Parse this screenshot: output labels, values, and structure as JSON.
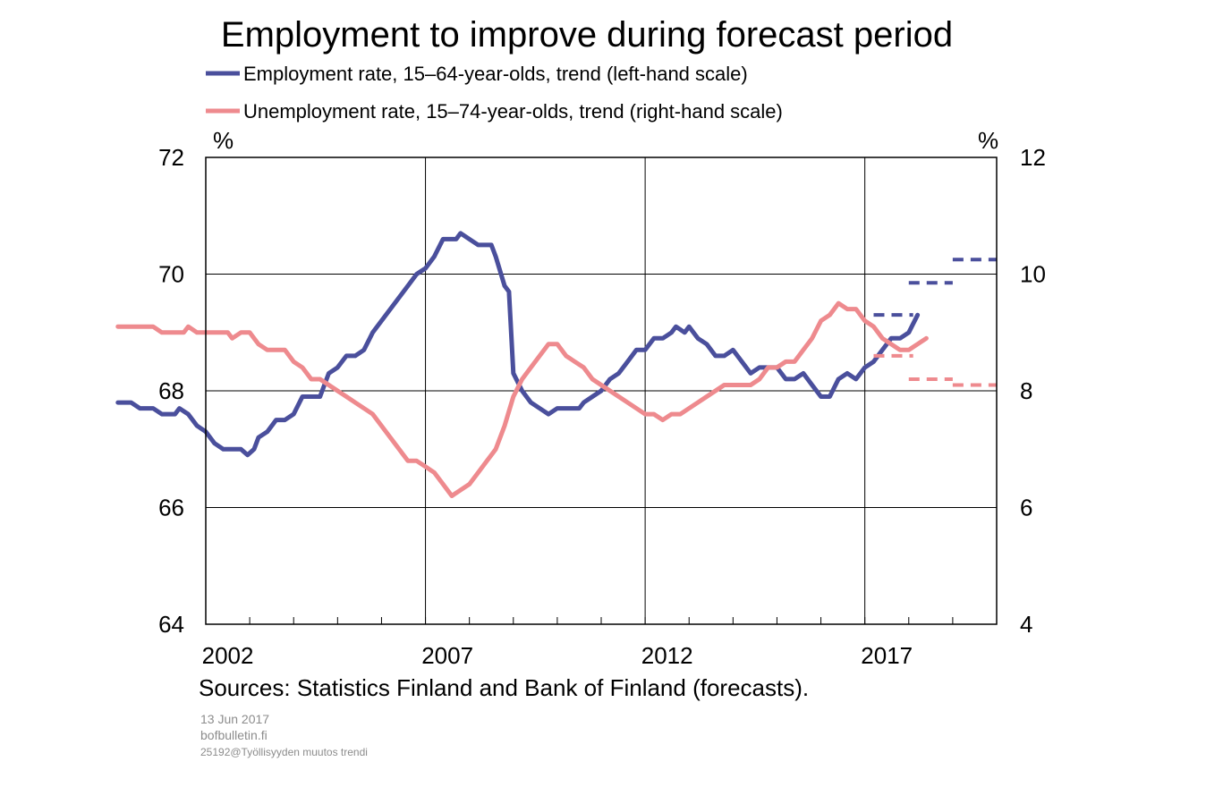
{
  "chart_data": {
    "type": "line",
    "title": "Employment to improve during forecast period",
    "left_unit": "%",
    "right_unit": "%",
    "x_tick_labels": [
      "2002",
      "2007",
      "2012",
      "2017"
    ],
    "x_range": [
      2001.0,
      2019.0
    ],
    "left_ylim": [
      64,
      72
    ],
    "right_ylim": [
      4,
      12
    ],
    "left_ticks": [
      "72",
      "70",
      "68",
      "66",
      "64"
    ],
    "right_ticks": [
      "12",
      "10",
      "8",
      "6",
      "4"
    ],
    "grid": true,
    "legend_position": "top",
    "series": [
      {
        "name": "Employment rate, 15–64-year-olds, trend (left-hand scale)",
        "axis": "left",
        "color": "#4a4f9c",
        "points": [
          [
            2001.0,
            67.8
          ],
          [
            2001.3,
            67.8
          ],
          [
            2001.5,
            67.7
          ],
          [
            2001.8,
            67.7
          ],
          [
            2002.0,
            67.6
          ],
          [
            2002.3,
            67.6
          ],
          [
            2002.4,
            67.7
          ],
          [
            2002.6,
            67.6
          ],
          [
            2002.8,
            67.4
          ],
          [
            2003.0,
            67.3
          ],
          [
            2003.2,
            67.1
          ],
          [
            2003.4,
            67.0
          ],
          [
            2003.6,
            67.0
          ],
          [
            2003.8,
            67.0
          ],
          [
            2003.95,
            66.9
          ],
          [
            2004.1,
            67.0
          ],
          [
            2004.2,
            67.2
          ],
          [
            2004.4,
            67.3
          ],
          [
            2004.6,
            67.5
          ],
          [
            2004.8,
            67.5
          ],
          [
            2005.0,
            67.6
          ],
          [
            2005.2,
            67.9
          ],
          [
            2005.4,
            67.9
          ],
          [
            2005.6,
            67.9
          ],
          [
            2005.8,
            68.3
          ],
          [
            2006.0,
            68.4
          ],
          [
            2006.2,
            68.6
          ],
          [
            2006.4,
            68.6
          ],
          [
            2006.6,
            68.7
          ],
          [
            2006.8,
            69.0
          ],
          [
            2007.0,
            69.2
          ],
          [
            2007.2,
            69.4
          ],
          [
            2007.4,
            69.6
          ],
          [
            2007.6,
            69.8
          ],
          [
            2007.8,
            70.0
          ],
          [
            2008.0,
            70.1
          ],
          [
            2008.2,
            70.3
          ],
          [
            2008.4,
            70.6
          ],
          [
            2008.7,
            70.6
          ],
          [
            2008.8,
            70.7
          ],
          [
            2009.0,
            70.6
          ],
          [
            2009.2,
            70.5
          ],
          [
            2009.5,
            70.5
          ],
          [
            2009.6,
            70.3
          ],
          [
            2009.8,
            69.8
          ],
          [
            2009.9,
            69.7
          ],
          [
            2010.0,
            68.3
          ],
          [
            2010.2,
            68.0
          ],
          [
            2010.4,
            67.8
          ],
          [
            2010.6,
            67.7
          ],
          [
            2010.8,
            67.6
          ],
          [
            2011.0,
            67.7
          ],
          [
            2011.2,
            67.7
          ],
          [
            2011.5,
            67.7
          ],
          [
            2011.6,
            67.8
          ],
          [
            2011.8,
            67.9
          ],
          [
            2012.0,
            68.0
          ],
          [
            2012.2,
            68.2
          ],
          [
            2012.4,
            68.3
          ],
          [
            2012.6,
            68.5
          ],
          [
            2012.8,
            68.7
          ],
          [
            2013.0,
            68.7
          ],
          [
            2013.2,
            68.9
          ],
          [
            2013.4,
            68.9
          ],
          [
            2013.6,
            69.0
          ],
          [
            2013.7,
            69.1
          ],
          [
            2013.9,
            69.0
          ],
          [
            2014.0,
            69.1
          ],
          [
            2014.2,
            68.9
          ],
          [
            2014.4,
            68.8
          ],
          [
            2014.6,
            68.6
          ],
          [
            2014.8,
            68.6
          ],
          [
            2015.0,
            68.7
          ],
          [
            2015.2,
            68.5
          ],
          [
            2015.4,
            68.3
          ],
          [
            2015.6,
            68.4
          ],
          [
            2015.8,
            68.4
          ],
          [
            2016.0,
            68.4
          ],
          [
            2016.2,
            68.2
          ],
          [
            2016.4,
            68.2
          ],
          [
            2016.6,
            68.3
          ],
          [
            2016.8,
            68.1
          ],
          [
            2017.0,
            67.9
          ],
          [
            2017.2,
            67.9
          ],
          [
            2017.4,
            68.2
          ],
          [
            2017.6,
            68.3
          ],
          [
            2017.8,
            68.2
          ],
          [
            2018.0,
            68.4
          ],
          [
            2018.2,
            68.5
          ],
          [
            2018.4,
            68.7
          ],
          [
            2018.6,
            68.9
          ],
          [
            2018.8,
            68.9
          ],
          [
            2019.0,
            69.0
          ],
          [
            2019.2,
            69.3
          ]
        ],
        "forecast_segments": [
          [
            69.3
          ],
          [
            69.85
          ],
          [
            70.25
          ]
        ]
      },
      {
        "name": "Unemployment rate, 15–74-year-olds, trend (right-hand scale)",
        "axis": "right",
        "color": "#ee8a8e",
        "points": [
          [
            2001.0,
            9.1
          ],
          [
            2001.8,
            9.1
          ],
          [
            2002.0,
            9.0
          ],
          [
            2002.5,
            9.0
          ],
          [
            2002.6,
            9.1
          ],
          [
            2002.8,
            9.0
          ],
          [
            2003.2,
            9.0
          ],
          [
            2003.5,
            9.0
          ],
          [
            2003.6,
            8.9
          ],
          [
            2003.8,
            9.0
          ],
          [
            2004.0,
            9.0
          ],
          [
            2004.2,
            8.8
          ],
          [
            2004.4,
            8.7
          ],
          [
            2004.6,
            8.7
          ],
          [
            2004.8,
            8.7
          ],
          [
            2005.0,
            8.5
          ],
          [
            2005.2,
            8.4
          ],
          [
            2005.4,
            8.2
          ],
          [
            2005.6,
            8.2
          ],
          [
            2005.8,
            8.1
          ],
          [
            2006.0,
            8.0
          ],
          [
            2006.2,
            7.9
          ],
          [
            2006.4,
            7.8
          ],
          [
            2006.6,
            7.7
          ],
          [
            2006.8,
            7.6
          ],
          [
            2007.0,
            7.4
          ],
          [
            2007.2,
            7.2
          ],
          [
            2007.4,
            7.0
          ],
          [
            2007.6,
            6.8
          ],
          [
            2007.8,
            6.8
          ],
          [
            2008.0,
            6.7
          ],
          [
            2008.2,
            6.6
          ],
          [
            2008.4,
            6.4
          ],
          [
            2008.6,
            6.2
          ],
          [
            2008.8,
            6.3
          ],
          [
            2009.0,
            6.4
          ],
          [
            2009.2,
            6.6
          ],
          [
            2009.4,
            6.8
          ],
          [
            2009.6,
            7.0
          ],
          [
            2009.8,
            7.4
          ],
          [
            2010.0,
            7.9
          ],
          [
            2010.2,
            8.2
          ],
          [
            2010.4,
            8.4
          ],
          [
            2010.6,
            8.6
          ],
          [
            2010.8,
            8.8
          ],
          [
            2011.0,
            8.8
          ],
          [
            2011.2,
            8.6
          ],
          [
            2011.4,
            8.5
          ],
          [
            2011.6,
            8.4
          ],
          [
            2011.8,
            8.2
          ],
          [
            2012.0,
            8.1
          ],
          [
            2012.2,
            8.0
          ],
          [
            2012.4,
            7.9
          ],
          [
            2012.6,
            7.8
          ],
          [
            2012.8,
            7.7
          ],
          [
            2013.0,
            7.6
          ],
          [
            2013.2,
            7.6
          ],
          [
            2013.4,
            7.5
          ],
          [
            2013.6,
            7.6
          ],
          [
            2013.8,
            7.6
          ],
          [
            2014.0,
            7.7
          ],
          [
            2014.2,
            7.8
          ],
          [
            2014.4,
            7.9
          ],
          [
            2014.6,
            8.0
          ],
          [
            2014.8,
            8.1
          ],
          [
            2015.0,
            8.1
          ],
          [
            2015.4,
            8.1
          ],
          [
            2015.6,
            8.2
          ],
          [
            2015.8,
            8.4
          ],
          [
            2016.0,
            8.4
          ],
          [
            2016.2,
            8.5
          ],
          [
            2016.4,
            8.5
          ],
          [
            2016.6,
            8.7
          ],
          [
            2016.8,
            8.9
          ],
          [
            2017.0,
            9.2
          ],
          [
            2017.2,
            9.3
          ],
          [
            2017.4,
            9.5
          ],
          [
            2017.6,
            9.4
          ],
          [
            2017.8,
            9.4
          ],
          [
            2018.0,
            9.2
          ],
          [
            2018.2,
            9.1
          ],
          [
            2018.4,
            8.9
          ],
          [
            2018.6,
            8.8
          ],
          [
            2018.8,
            8.7
          ],
          [
            2019.0,
            8.7
          ],
          [
            2019.2,
            8.8
          ],
          [
            2019.4,
            8.9
          ]
        ],
        "forecast_segments": [
          [
            8.6
          ],
          [
            8.2
          ],
          [
            8.1
          ]
        ]
      }
    ]
  },
  "footer": {
    "sources": "Sources: Statistics Finland and Bank of Finland (forecasts).",
    "date": "13 Jun 2017",
    "site": "bofbulletin.fi",
    "file_id": "25192@Työllisyyden muutos trendi"
  }
}
